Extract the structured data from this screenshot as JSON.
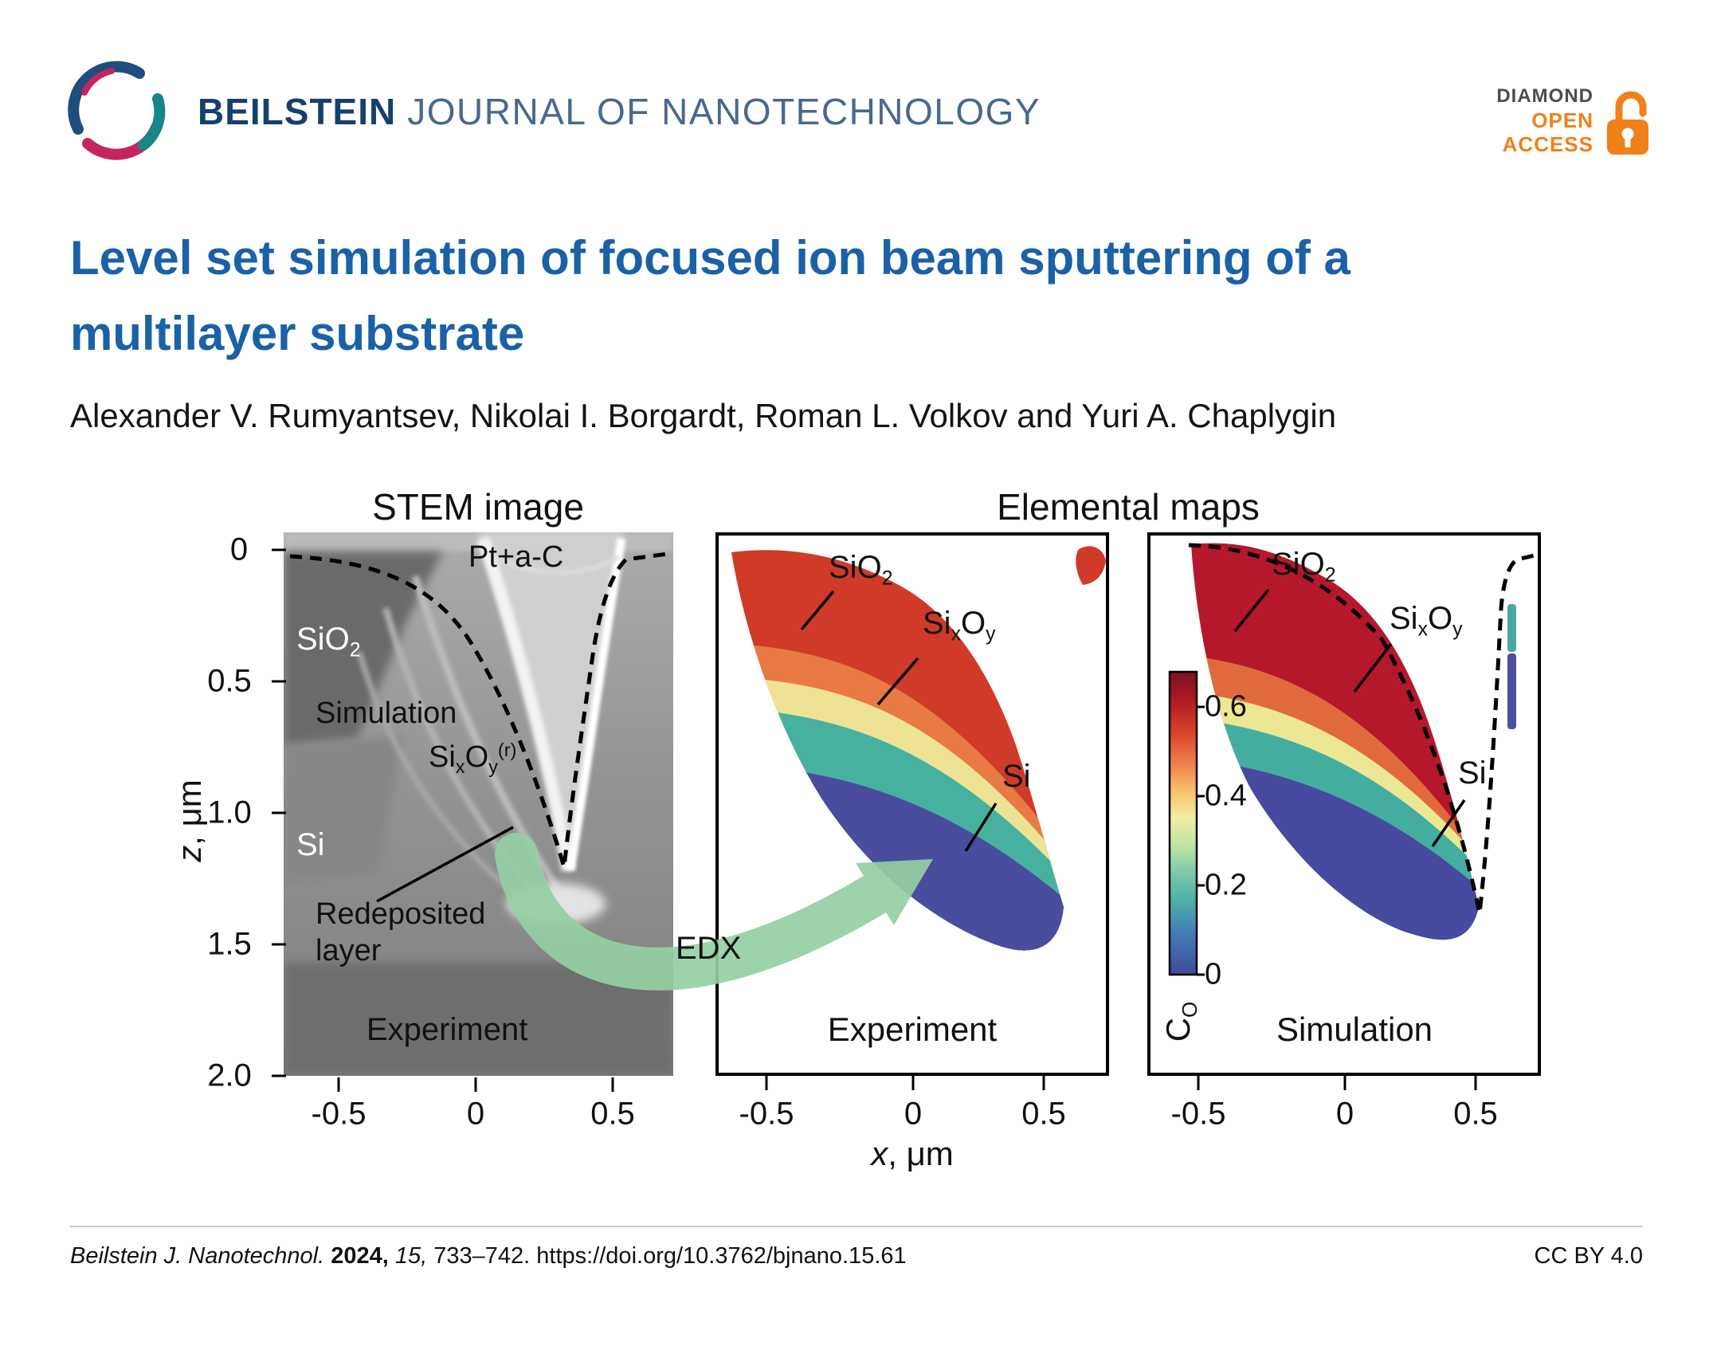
{
  "header": {
    "journal_bold": "BEILSTEIN",
    "journal_rest": "JOURNAL OF NANOTECHNOLOGY",
    "badge_diamond": "DIAMOND",
    "badge_open": "OPEN",
    "badge_access": "ACCESS"
  },
  "article": {
    "title_line1": "Level set simulation of focused ion beam sputtering of a",
    "title_line2": "multilayer substrate",
    "authors": "Alexander V. Rumyantsev, Nikolai I. Borgardt, Roman L. Volkov and Yuri A. Chaplygin"
  },
  "figure": {
    "stem_title": "STEM image",
    "elemental_title": "Elemental maps",
    "edx": "EDX",
    "axis": {
      "z_var": "z",
      "z_unit": ", μm",
      "x_var": "x",
      "x_unit": ", μm",
      "z_ticks": [
        "0",
        "0.5",
        "1.0",
        "1.5",
        "2.0"
      ],
      "x_ticks": [
        "-0.5",
        "0",
        "0.5"
      ]
    },
    "stem_labels": {
      "pt": "Pt+a-C",
      "sio2": [
        {
          "t": "SiO"
        },
        {
          "t": "2",
          "s": "sub"
        }
      ],
      "simulation": "Simulation",
      "sixoyr": [
        {
          "t": "Si"
        },
        {
          "t": "x",
          "s": "sub"
        },
        {
          "t": "O"
        },
        {
          "t": "y",
          "s": "sub"
        },
        {
          "t": "(r)",
          "s": "sup"
        }
      ],
      "si": "Si",
      "redeposited1": "Redeposited",
      "redeposited2": "layer",
      "experiment": "Experiment"
    },
    "experiment_map": {
      "sio2": [
        {
          "t": "SiO"
        },
        {
          "t": "2",
          "s": "sub"
        }
      ],
      "sixoy": [
        {
          "t": "Si"
        },
        {
          "t": "x",
          "s": "sub"
        },
        {
          "t": "O"
        },
        {
          "t": "y",
          "s": "sub"
        }
      ],
      "si": "Si",
      "caption": "Experiment"
    },
    "simulation_map": {
      "sio2": [
        {
          "t": "SiO"
        },
        {
          "t": "2",
          "s": "sub"
        }
      ],
      "sixoy": [
        {
          "t": "Si"
        },
        {
          "t": "x",
          "s": "sub"
        },
        {
          "t": "O"
        },
        {
          "t": "y",
          "s": "sub"
        }
      ],
      "si": "Si",
      "caption": "Simulation",
      "colorbar_ticks": [
        "0.6",
        "0.4",
        "0.2",
        "0"
      ],
      "colorbar_label": [
        {
          "t": "C"
        },
        {
          "t": "O",
          "s": "sub"
        }
      ]
    }
  },
  "footer": {
    "citation_journal": "Beilstein J. Nanotechnol.",
    "citation_year": " 2024, ",
    "citation_volume": "15, ",
    "citation_rest": "733–742. https://doi.org/10.3762/bjnano.15.61",
    "license": "CC BY 4.0"
  },
  "colors": {
    "title_blue": "#1a61a6",
    "journal_navy": "#16406b",
    "journal_gray_blue": "#48688e",
    "badge_orange": "#f08019",
    "arrow_green": "#95cfa4"
  }
}
